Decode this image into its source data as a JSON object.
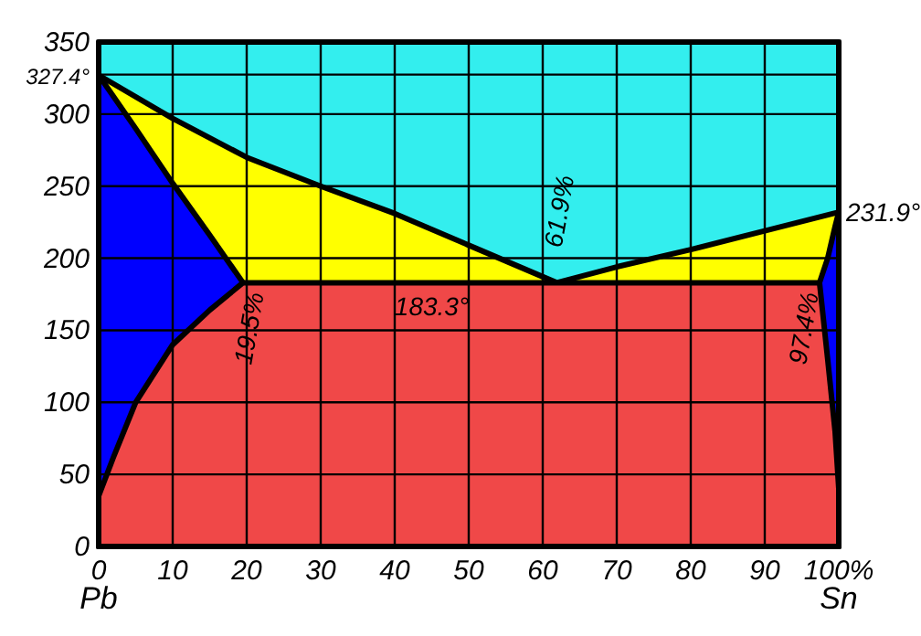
{
  "chart_data": {
    "type": "area",
    "xlim": [
      0,
      100
    ],
    "ylim": [
      0,
      350
    ],
    "xticks": [
      0,
      10,
      20,
      30,
      40,
      50,
      60,
      70,
      80,
      90,
      {
        "value": 100,
        "label": "100%"
      }
    ],
    "yticks": [
      0,
      50,
      100,
      150,
      200,
      250,
      300,
      {
        "value": 327.4,
        "label": "327.4°"
      },
      350
    ],
    "grid": true,
    "series": [
      {
        "color": "#33eeee",
        "x": [
          0,
          100
        ],
        "values": [
          350,
          350
        ]
      },
      {
        "color": "#ffff00",
        "x": [
          0,
          10,
          20,
          30,
          40,
          50,
          61.9,
          70,
          80,
          90,
          100
        ],
        "values": [
          327,
          297,
          270,
          250,
          231,
          209,
          183,
          194,
          206,
          219,
          232
        ]
      },
      {
        "color": "#0000ff",
        "x": [
          0,
          5,
          10,
          15,
          19.5
        ],
        "values": [
          327,
          290,
          252,
          216,
          183
        ]
      },
      {
        "color": "#0000ff",
        "x": [
          97.4,
          98.5,
          99.5,
          100
        ],
        "values": [
          183,
          200,
          222,
          232
        ]
      },
      {
        "color": "#f04848",
        "x": [
          0,
          2,
          5,
          10,
          15,
          19.5,
          97.4,
          98.5,
          99.5,
          100
        ],
        "values": [
          35,
          62,
          100,
          140,
          164,
          183,
          183,
          130,
          80,
          40
        ]
      }
    ],
    "annotations": [
      {
        "text": "231.9°",
        "x": 100,
        "y": 231.9
      },
      {
        "text": "183.3°",
        "x": 45,
        "y": 183.3
      },
      {
        "text": "61.9%",
        "x": 61.9,
        "y": 183.3
      },
      {
        "text": "19.5%",
        "x": 19.5,
        "y": 183.3
      },
      {
        "text": "97.4%",
        "x": 97.4,
        "y": 183.3
      },
      {
        "text": "Pb",
        "x": 0,
        "y": 0
      },
      {
        "text": "Sn",
        "x": 100,
        "y": 0
      }
    ]
  }
}
